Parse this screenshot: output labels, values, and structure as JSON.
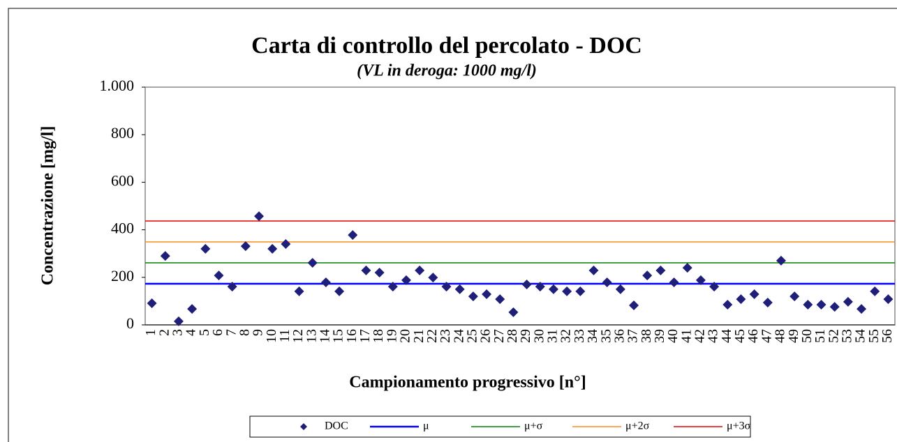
{
  "chart_data": {
    "type": "scatter",
    "title": "Carta di controllo del percolato - DOC",
    "subtitle": "(VL in deroga: 1000 mg/l)",
    "x_label": "Campionamento  progressivo [n°]",
    "y_label": "Concentrazione  [mg/l]",
    "categories": [
      "1",
      "2",
      "3",
      "4",
      "5",
      "6",
      "7",
      "8",
      "9",
      "10",
      "11",
      "12",
      "13",
      "14",
      "15",
      "16",
      "17",
      "18",
      "19",
      "20",
      "21",
      "22",
      "23",
      "24",
      "25",
      "26",
      "27",
      "28",
      "29",
      "30",
      "31",
      "32",
      "33",
      "34",
      "35",
      "36",
      "37",
      "38",
      "39",
      "40",
      "41",
      "42",
      "43",
      "44",
      "45",
      "46",
      "47",
      "48",
      "49",
      "50",
      "51",
      "52",
      "53",
      "54",
      "55",
      "56"
    ],
    "series": [
      {
        "name": "DOC",
        "color": "#1f1f7a",
        "values": [
          91,
          290,
          15,
          67,
          320,
          208,
          161,
          331,
          457,
          320,
          340,
          141,
          261,
          179,
          141,
          378,
          229,
          220,
          161,
          188,
          229,
          199,
          161,
          150,
          120,
          129,
          108,
          53,
          170,
          161,
          150,
          141,
          141,
          229,
          179,
          150,
          82,
          208,
          229,
          179,
          240,
          188,
          161,
          85,
          108,
          129,
          94,
          270,
          120,
          85,
          85,
          76,
          97,
          67,
          141,
          108
        ]
      }
    ],
    "reference_lines": [
      {
        "name": "μ",
        "color": "#0000ff",
        "value": 173
      },
      {
        "name": "μ+σ",
        "color": "#008000",
        "value": 261
      },
      {
        "name": "μ+2σ",
        "color": "#ff8c1a",
        "value": 349
      },
      {
        "name": "μ+3σ",
        "color": "#e60000",
        "value": 437
      }
    ],
    "ylim": [
      0,
      1000
    ],
    "yticks": [
      0,
      200,
      400,
      600,
      800,
      {
        "value": 1000,
        "label": "1.000"
      }
    ],
    "grid": false
  }
}
